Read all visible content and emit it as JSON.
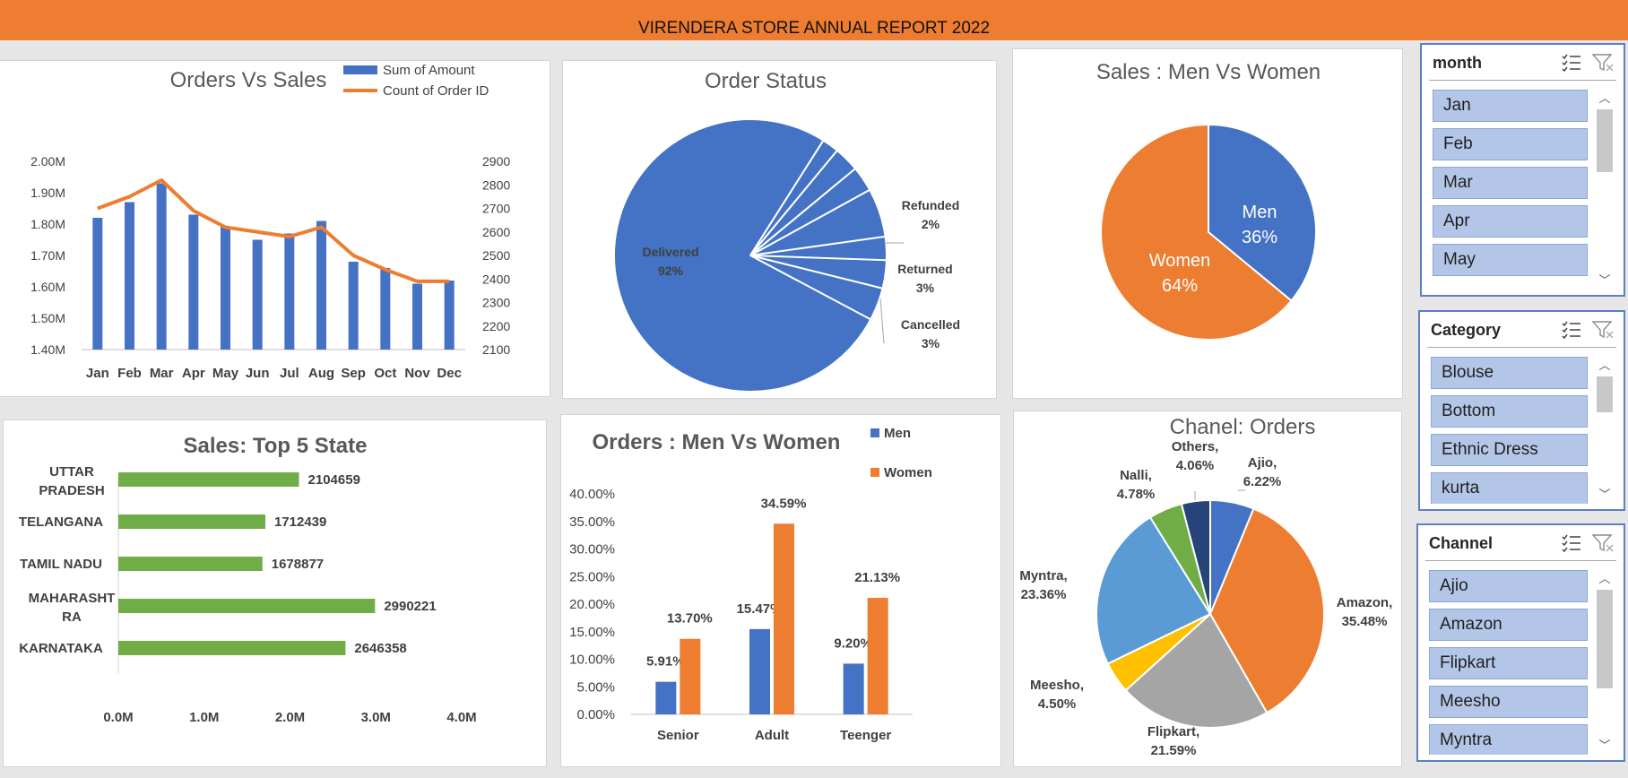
{
  "header": {
    "title": "VIRENDERA STORE ANNUAL REPORT 2022"
  },
  "colors": {
    "blue": "#4472c4",
    "orange": "#ed7d31",
    "green": "#70ad47",
    "gray": "#a5a5a5",
    "yellow": "#ffc000",
    "lightblue": "#5b9bd5",
    "navy": "#264478"
  },
  "chart_data": [
    {
      "type": "bar+line",
      "title": "Orders Vs Sales",
      "categories": [
        "Jan",
        "Feb",
        "Mar",
        "Apr",
        "May",
        "Jun",
        "Jul",
        "Aug",
        "Sep",
        "Oct",
        "Nov",
        "Dec"
      ],
      "series": [
        {
          "name": "Sum of Amount",
          "type": "bar",
          "axis": "left",
          "values": [
            1.82,
            1.87,
            1.93,
            1.83,
            1.79,
            1.75,
            1.77,
            1.81,
            1.68,
            1.66,
            1.61,
            1.62
          ]
        },
        {
          "name": "Count of Order ID",
          "type": "line",
          "axis": "right",
          "values": [
            2700,
            2750,
            2820,
            2690,
            2620,
            2600,
            2580,
            2620,
            2500,
            2440,
            2390,
            2390
          ]
        }
      ],
      "y_left": {
        "ticks": [
          "1.40M",
          "1.50M",
          "1.60M",
          "1.70M",
          "1.80M",
          "1.90M",
          "2.00M"
        ],
        "lim": [
          1.4,
          2.0
        ]
      },
      "y_right": {
        "ticks": [
          "2100",
          "2200",
          "2300",
          "2400",
          "2500",
          "2600",
          "2700",
          "2800",
          "2900"
        ],
        "lim": [
          2100,
          2900
        ]
      },
      "legend": "top-right"
    },
    {
      "type": "pie",
      "title": "Order Status",
      "slices": [
        {
          "label": "Delivered",
          "pct": "92%",
          "value": 92
        },
        {
          "label": "Refunded",
          "pct": "2%",
          "value": 2
        },
        {
          "label": "Returned",
          "pct": "3%",
          "value": 3
        },
        {
          "label": "Cancelled",
          "pct": "3%",
          "value": 3
        }
      ]
    },
    {
      "type": "pie",
      "title": "Sales : Men Vs Women",
      "slices": [
        {
          "label": "Men",
          "pct": "36%",
          "value": 36
        },
        {
          "label": "Women",
          "pct": "64%",
          "value": 64
        }
      ]
    },
    {
      "type": "bar",
      "orientation": "horizontal",
      "title": "Sales: Top 5 State",
      "categories": [
        "UTTAR PRADESH",
        "TELANGANA",
        "TAMIL NADU",
        "MAHARASHTRA",
        "KARNATAKA"
      ],
      "category_lines": [
        [
          "UTTAR",
          "PRADESH"
        ],
        [
          "TELANGANA"
        ],
        [
          "TAMIL NADU"
        ],
        [
          "MAHARASHT",
          "RA"
        ],
        [
          "KARNATAKA"
        ]
      ],
      "values": [
        2104659,
        1712439,
        1678877,
        2990221,
        2646358
      ],
      "xticks": [
        "0.0M",
        "1.0M",
        "2.0M",
        "3.0M",
        "4.0M"
      ],
      "xlim": [
        0,
        4000000
      ]
    },
    {
      "type": "bar",
      "title": "Orders : Men Vs Women",
      "categories": [
        "Senior",
        "Adult",
        "Teenger"
      ],
      "series": [
        {
          "name": "Men",
          "values": [
            5.91,
            15.47,
            9.2
          ],
          "labels": [
            "5.91%",
            "15.47%",
            "9.20%"
          ]
        },
        {
          "name": "Women",
          "values": [
            13.7,
            34.59,
            21.13
          ],
          "labels": [
            "13.70%",
            "34.59%",
            "21.13%"
          ]
        }
      ],
      "yticks": [
        "0.00%",
        "5.00%",
        "10.00%",
        "15.00%",
        "20.00%",
        "25.00%",
        "30.00%",
        "35.00%",
        "40.00%"
      ],
      "ylim": [
        0,
        40
      ],
      "legend": "top-right"
    },
    {
      "type": "pie",
      "title": "Chanel: Orders",
      "slices": [
        {
          "label": "Ajio,",
          "pct": "6.22%",
          "value": 6.22
        },
        {
          "label": "Amazon,",
          "pct": "35.48%",
          "value": 35.48
        },
        {
          "label": "Flipkart,",
          "pct": "21.59%",
          "value": 21.59
        },
        {
          "label": "Meesho,",
          "pct": "4.50%",
          "value": 4.5
        },
        {
          "label": "Myntra,",
          "pct": "23.36%",
          "value": 23.36
        },
        {
          "label": "Nalli,",
          "pct": "4.78%",
          "value": 4.78
        },
        {
          "label": "Others,",
          "pct": "4.06%",
          "value": 4.06
        }
      ]
    }
  ],
  "slicers": [
    {
      "title": "month",
      "items": [
        "Jan",
        "Feb",
        "Mar",
        "Apr",
        "May"
      ]
    },
    {
      "title": "Category",
      "items": [
        "Blouse",
        "Bottom",
        "Ethnic Dress",
        "kurta"
      ]
    },
    {
      "title": "Channel",
      "items": [
        "Ajio",
        "Amazon",
        "Flipkart",
        "Meesho",
        "Myntra"
      ]
    }
  ]
}
